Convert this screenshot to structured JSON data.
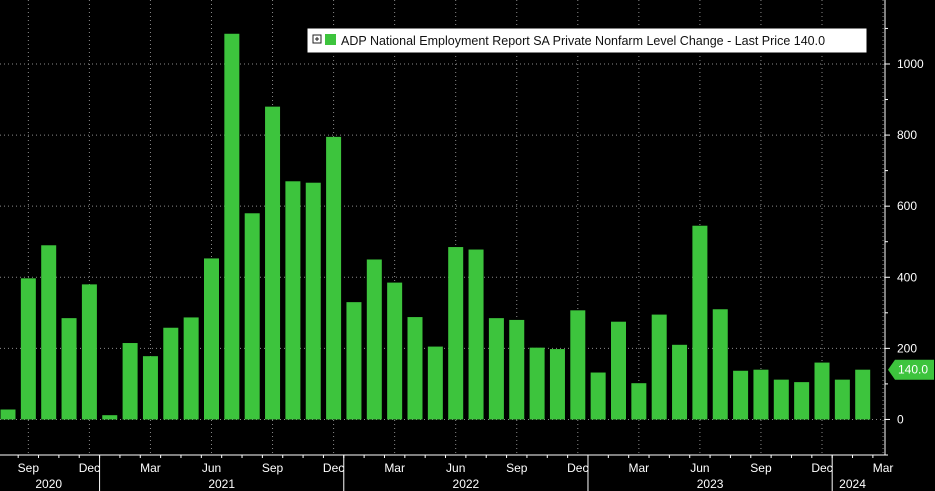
{
  "chart_data": {
    "type": "bar",
    "legend": {
      "expand_icon": "expand-box-icon",
      "text": "ADP National Employment Report SA Private Nonfarm Level Change - Last Price 140.0",
      "placement": "top-right"
    },
    "last_value_label": "140.0",
    "colors": {
      "bar": "#3dc43d",
      "background": "#000000",
      "grid": "#8a8a8a",
      "text": "#ffffff",
      "tag": "#3dc43d"
    },
    "grid": true,
    "ylim": [
      -100,
      1180
    ],
    "y_ticks": [
      0,
      200,
      400,
      600,
      800,
      1000
    ],
    "y_tick_labels": [
      "0",
      "200",
      "400",
      "600",
      "800",
      "1000"
    ],
    "x_month_labels": [
      {
        "label": "Sep",
        "index": 1
      },
      {
        "label": "Dec",
        "index": 4
      },
      {
        "label": "Mar",
        "index": 7
      },
      {
        "label": "Jun",
        "index": 10
      },
      {
        "label": "Sep",
        "index": 13
      },
      {
        "label": "Dec",
        "index": 16
      },
      {
        "label": "Mar",
        "index": 19
      },
      {
        "label": "Jun",
        "index": 22
      },
      {
        "label": "Sep",
        "index": 25
      },
      {
        "label": "Dec",
        "index": 28
      },
      {
        "label": "Mar",
        "index": 31
      },
      {
        "label": "Jun",
        "index": 34
      },
      {
        "label": "Sep",
        "index": 37
      },
      {
        "label": "Dec",
        "index": 40
      },
      {
        "label": "Mar",
        "index": 43
      }
    ],
    "x_year_labels": [
      {
        "label": "2020",
        "start": 0,
        "end": 4
      },
      {
        "label": "2021",
        "start": 5,
        "end": 16
      },
      {
        "label": "2022",
        "start": 17,
        "end": 28
      },
      {
        "label": "2023",
        "start": 29,
        "end": 40
      },
      {
        "label": "2024",
        "start": 41,
        "end": 42
      }
    ],
    "categories": [
      "2020-08",
      "2020-09",
      "2020-10",
      "2020-11",
      "2020-12",
      "2021-01",
      "2021-02",
      "2021-03",
      "2021-04",
      "2021-05",
      "2021-06",
      "2021-07",
      "2021-08",
      "2021-09",
      "2021-10",
      "2021-11",
      "2021-12",
      "2022-01",
      "2022-02",
      "2022-03",
      "2022-04",
      "2022-05",
      "2022-06",
      "2022-07",
      "2022-08",
      "2022-09",
      "2022-10",
      "2022-11",
      "2022-12",
      "2023-01",
      "2023-02",
      "2023-03",
      "2023-04",
      "2023-05",
      "2023-06",
      "2023-07",
      "2023-08",
      "2023-09",
      "2023-10",
      "2023-11",
      "2023-12",
      "2024-01",
      "2024-02"
    ],
    "values": [
      28,
      397,
      490,
      285,
      380,
      12,
      215,
      178,
      258,
      287,
      453,
      1085,
      580,
      880,
      670,
      666,
      795,
      330,
      450,
      385,
      288,
      205,
      485,
      478,
      285,
      280,
      202,
      198,
      307,
      132,
      275,
      102,
      295,
      210,
      545,
      310,
      137,
      140,
      112,
      105,
      160,
      112,
      140
    ]
  }
}
